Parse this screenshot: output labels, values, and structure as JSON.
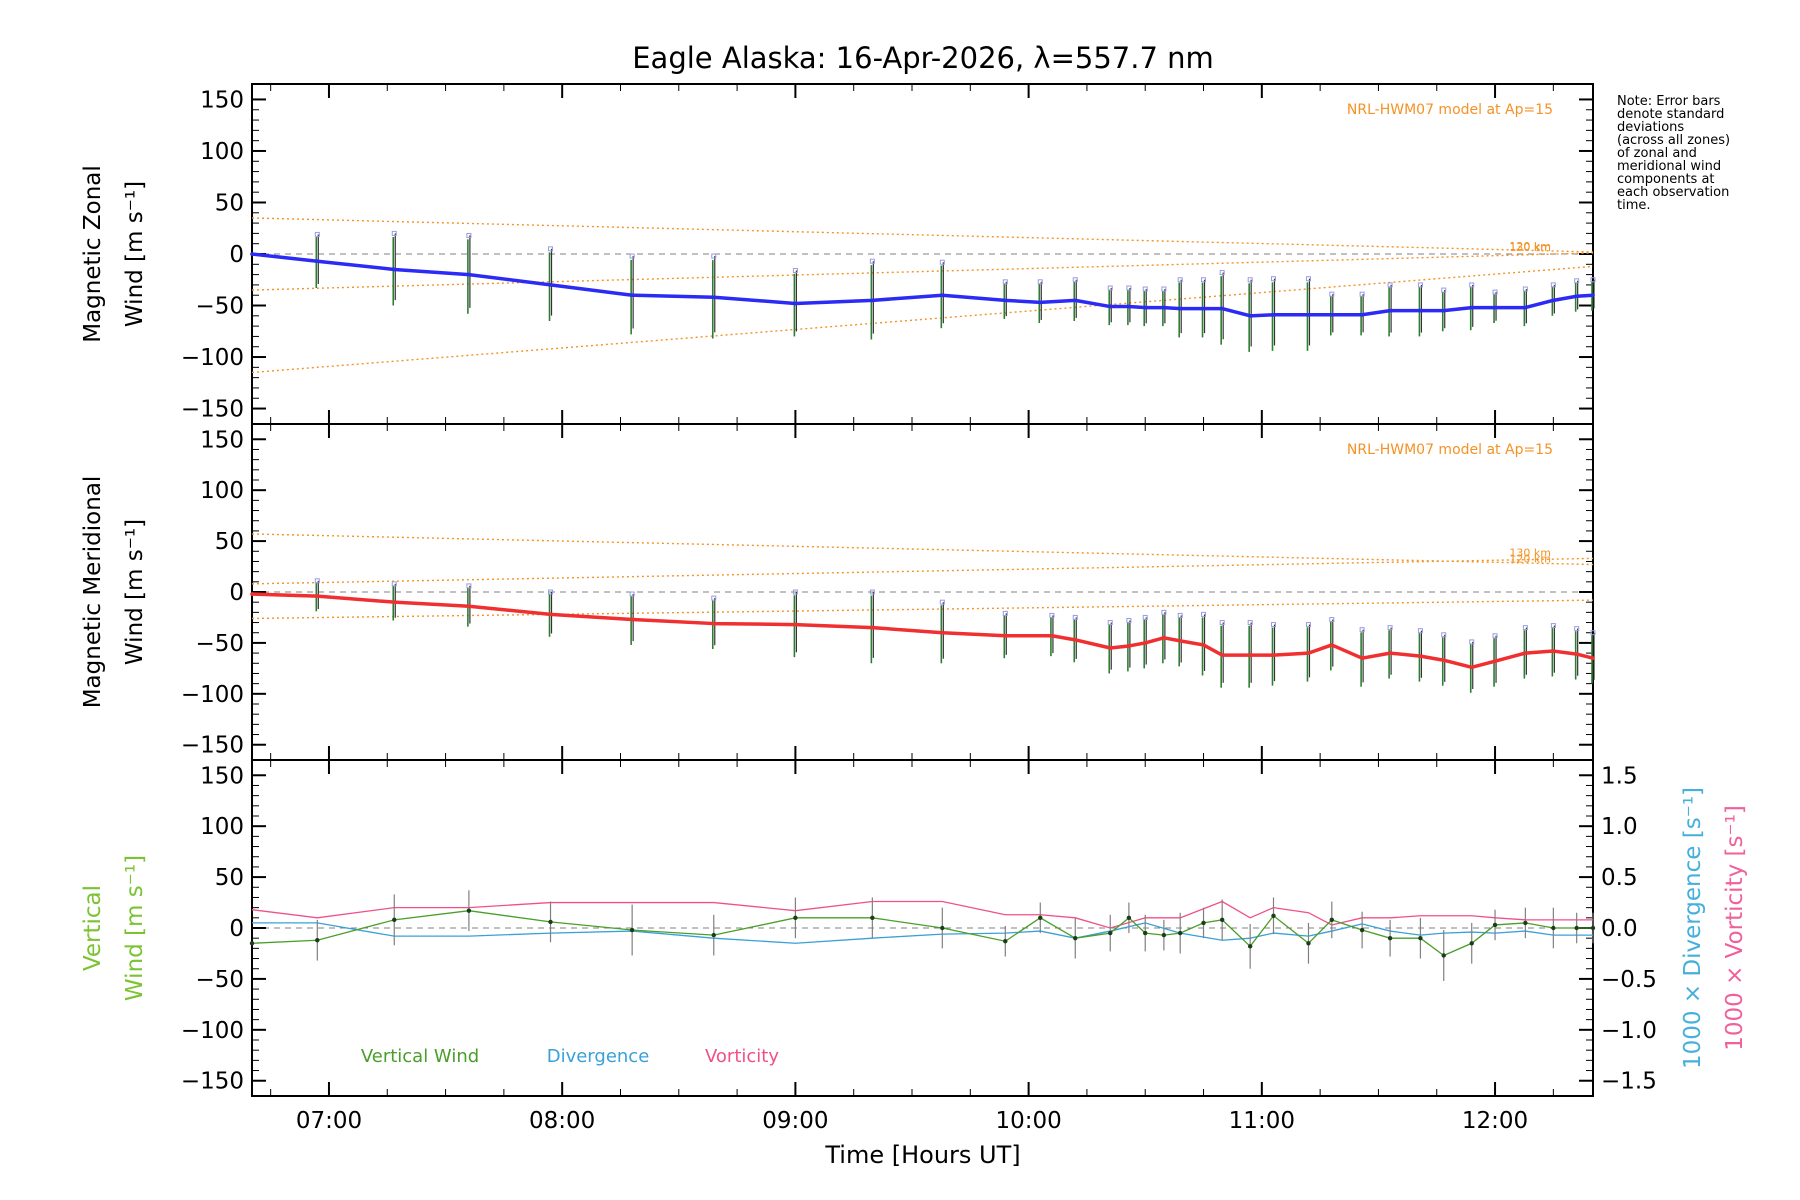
{
  "title": "Eagle Alaska: 16-Apr-2026, λ=557.7 nm",
  "note": "Note: Error bars\ndenote standard\ndeviations\n(across all zones)\nof zonal and\nmeridional wind\ncomponents at\neach observation\ntime.",
  "x_axis": {
    "label": "Time [Hours UT]",
    "ticks": [
      "07:00",
      "08:00",
      "09:00",
      "10:00",
      "11:00",
      "12:00"
    ]
  },
  "colors": {
    "zonal": "#2b2bf5",
    "meridional": "#f03030",
    "vertical": "#4a9e2a",
    "divergence": "#3aa0d8",
    "vorticity": "#f0508a",
    "model": "#f59225",
    "grey": "#808080",
    "vertical_label": "#7cc332",
    "divergence_label": "#46b0dc",
    "vorticity_label": "#f0609a"
  },
  "chart_data": [
    {
      "name": "zonal",
      "type": "line",
      "ylabel_line1": "Magnetic Zonal",
      "ylabel_line2": "Wind [m s⁻¹]",
      "ylim": [
        -165,
        165
      ],
      "yticks": [
        "150",
        "100",
        "50",
        "0",
        "−50",
        "−100",
        "−150"
      ],
      "model_label": "NRL-HWM07 model at Ap=15",
      "model_curves": [
        {
          "label": "120 km",
          "x": [
            6.67,
            12.42
          ],
          "y": [
            35,
            2
          ]
        },
        {
          "label": "130 km",
          "x": [
            6.67,
            12.42
          ],
          "y": [
            -35,
            1
          ]
        },
        {
          "label": "",
          "x": [
            6.67,
            12.42
          ],
          "y": [
            -115,
            -12
          ]
        }
      ],
      "series": {
        "name": "Zonal Wind",
        "x": [
          6.67,
          6.95,
          7.28,
          7.6,
          7.95,
          8.3,
          8.65,
          9.0,
          9.33,
          9.63,
          9.9,
          10.05,
          10.2,
          10.35,
          10.43,
          10.5,
          10.58,
          10.65,
          10.75,
          10.83,
          10.95,
          11.05,
          11.2,
          11.3,
          11.43,
          11.55,
          11.68,
          11.78,
          11.9,
          12.0,
          12.13,
          12.25,
          12.35,
          12.42
        ],
        "y": [
          0,
          -7,
          -15,
          -20,
          -30,
          -40,
          -42,
          -48,
          -45,
          -40,
          -45,
          -47,
          -45,
          -51,
          -51,
          -52,
          -52,
          -53,
          -53,
          -53,
          -60,
          -59,
          -59,
          -59,
          -59,
          -55,
          -55,
          -55,
          -52,
          -52,
          -52,
          -45,
          -41,
          -40
        ],
        "err": [
          0,
          26,
          35,
          38,
          35,
          38,
          40,
          32,
          38,
          32,
          18,
          20,
          20,
          18,
          18,
          18,
          18,
          28,
          28,
          35,
          35,
          35,
          35,
          20,
          20,
          25,
          25,
          20,
          22,
          15,
          18,
          15,
          15,
          15
        ]
      }
    },
    {
      "name": "meridional",
      "type": "line",
      "ylabel_line1": "Magnetic Meridional",
      "ylabel_line2": "Wind [m s⁻¹]",
      "ylim": [
        -165,
        165
      ],
      "yticks": [
        "150",
        "100",
        "50",
        "0",
        "−50",
        "−100",
        "−150"
      ],
      "model_label": "NRL-HWM07 model at Ap=15",
      "model_curves": [
        {
          "label": "120 km",
          "x": [
            6.67,
            12.42
          ],
          "y": [
            57,
            27
          ]
        },
        {
          "label": "130 km",
          "x": [
            6.67,
            12.42
          ],
          "y": [
            8,
            33
          ]
        },
        {
          "label": "",
          "x": [
            6.67,
            12.42
          ],
          "y": [
            -26,
            -8
          ]
        }
      ],
      "series": {
        "name": "Meridional Wind",
        "x": [
          6.67,
          6.95,
          7.28,
          7.6,
          7.95,
          8.3,
          8.65,
          9.0,
          9.33,
          9.63,
          9.9,
          10.1,
          10.2,
          10.35,
          10.43,
          10.5,
          10.58,
          10.65,
          10.75,
          10.83,
          10.95,
          11.05,
          11.2,
          11.3,
          11.43,
          11.55,
          11.68,
          11.78,
          11.9,
          12.0,
          12.13,
          12.25,
          12.35,
          12.42
        ],
        "y": [
          -2,
          -4,
          -10,
          -14,
          -22,
          -27,
          -31,
          -32,
          -35,
          -40,
          -43,
          -43,
          -47,
          -55,
          -53,
          -50,
          -45,
          -48,
          -52,
          -62,
          -62,
          -62,
          -60,
          -52,
          -65,
          -60,
          -63,
          -67,
          -74,
          -68,
          -60,
          -58,
          -61,
          -65
        ],
        "err": [
          0,
          15,
          18,
          20,
          22,
          25,
          25,
          32,
          35,
          30,
          22,
          20,
          22,
          25,
          25,
          25,
          25,
          25,
          30,
          32,
          32,
          30,
          28,
          25,
          28,
          25,
          25,
          25,
          25,
          25,
          25,
          25,
          25,
          25
        ]
      }
    },
    {
      "name": "vertical",
      "type": "line",
      "ylabel_line1": "Vertical",
      "ylabel_line2": "Wind [m s⁻¹]",
      "ylim": [
        -165,
        165
      ],
      "yticks": [
        "150",
        "100",
        "50",
        "0",
        "−50",
        "−100",
        "−150"
      ],
      "y2lim": [
        -1.65,
        1.65
      ],
      "y2ticks": [
        "1.5",
        "1.0",
        "0.5",
        "0.0",
        "−0.5",
        "−1.0",
        "−1.5"
      ],
      "y2label_divergence": "1000 × Divergence [s⁻¹]",
      "y2label_vorticity": "1000 × Vorticity [s⁻¹]",
      "legend": [
        "Vertical Wind",
        "Divergence",
        "Vorticity"
      ],
      "vertical": {
        "x": [
          6.67,
          6.95,
          7.28,
          7.6,
          7.95,
          8.3,
          8.65,
          9.0,
          9.33,
          9.63,
          9.9,
          10.05,
          10.2,
          10.35,
          10.43,
          10.5,
          10.58,
          10.65,
          10.75,
          10.83,
          10.95,
          11.05,
          11.2,
          11.3,
          11.43,
          11.55,
          11.68,
          11.78,
          11.9,
          12.0,
          12.13,
          12.25,
          12.35,
          12.42
        ],
        "y": [
          -15,
          -12,
          8,
          17,
          6,
          -2,
          -7,
          10,
          10,
          0,
          -13,
          10,
          -10,
          -5,
          10,
          -5,
          -7,
          -5,
          5,
          8,
          -18,
          12,
          -15,
          8,
          -2,
          -10,
          -10,
          -27,
          -15,
          3,
          5,
          0,
          0,
          0
        ],
        "err": [
          0,
          20,
          25,
          20,
          20,
          25,
          20,
          20,
          20,
          20,
          15,
          15,
          20,
          18,
          15,
          18,
          15,
          20,
          15,
          20,
          22,
          18,
          20,
          18,
          18,
          18,
          20,
          25,
          20,
          15,
          15,
          20,
          15,
          15
        ]
      },
      "divergence": {
        "x": [
          6.67,
          6.95,
          7.28,
          7.6,
          7.95,
          8.3,
          8.65,
          9.0,
          9.33,
          9.63,
          9.9,
          10.05,
          10.2,
          10.35,
          10.5,
          10.65,
          10.83,
          10.95,
          11.05,
          11.2,
          11.3,
          11.43,
          11.55,
          11.68,
          11.78,
          11.9,
          12.0,
          12.13,
          12.25,
          12.42
        ],
        "y": [
          0.05,
          0.05,
          -0.08,
          -0.08,
          -0.05,
          -0.03,
          -0.1,
          -0.15,
          -0.1,
          -0.06,
          -0.05,
          -0.03,
          -0.1,
          -0.03,
          0.05,
          -0.05,
          -0.12,
          -0.1,
          -0.05,
          -0.08,
          -0.03,
          0.04,
          -0.03,
          -0.07,
          -0.05,
          -0.04,
          -0.05,
          -0.03,
          -0.07,
          -0.07
        ]
      },
      "vorticity": {
        "x": [
          6.67,
          6.95,
          7.28,
          7.6,
          7.95,
          8.3,
          8.65,
          9.0,
          9.33,
          9.63,
          9.9,
          10.05,
          10.2,
          10.35,
          10.5,
          10.65,
          10.83,
          10.95,
          11.05,
          11.2,
          11.3,
          11.43,
          11.55,
          11.68,
          11.78,
          11.9,
          12.0,
          12.13,
          12.25,
          12.42
        ],
        "y": [
          0.18,
          0.1,
          0.2,
          0.2,
          0.25,
          0.25,
          0.25,
          0.17,
          0.26,
          0.26,
          0.13,
          0.13,
          0.1,
          0.0,
          0.1,
          0.1,
          0.26,
          0.1,
          0.2,
          0.15,
          0.03,
          0.1,
          0.1,
          0.12,
          0.12,
          0.12,
          0.1,
          0.08,
          0.08,
          0.08
        ]
      }
    }
  ]
}
